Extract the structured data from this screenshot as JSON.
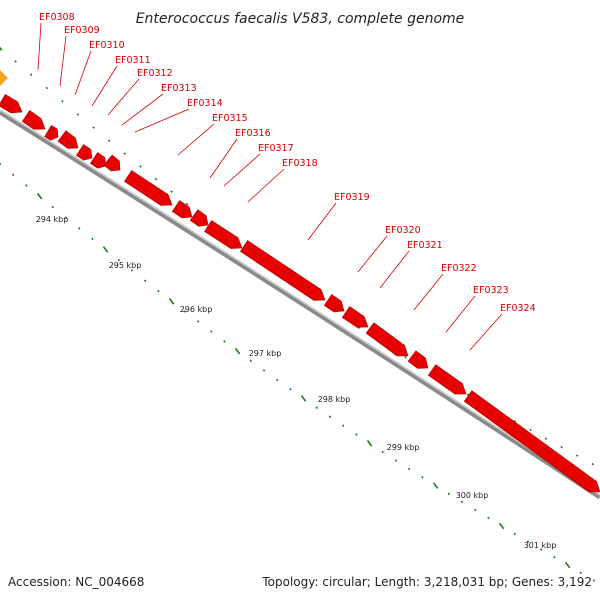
{
  "title": "Enterococcus faecalis V583, complete genome",
  "footer": {
    "accession": "Accession: NC_004668",
    "summary": "Topology: circular; Length: 3,218,031 bp; Genes: 3,192"
  },
  "colors": {
    "gene": "#e60000",
    "gene_alt": "#f5a623",
    "label": "#d40000",
    "tick": "#1a7a1a",
    "backbone": "#8a8a8a"
  },
  "genes": [
    "EF0308",
    "EF0309",
    "EF0310",
    "EF0311",
    "EF0312",
    "EF0313",
    "EF0314",
    "EF0315",
    "EF0316",
    "EF0317",
    "EF0318",
    "EF0319",
    "EF0320",
    "EF0321",
    "EF0322",
    "EF0323",
    "EF0324"
  ],
  "scale_labels": [
    "294 kbp",
    "295 kbp",
    "296 kbp",
    "297 kbp",
    "298 kbp",
    "299 kbp",
    "300 kbp",
    "301 kbp"
  ]
}
